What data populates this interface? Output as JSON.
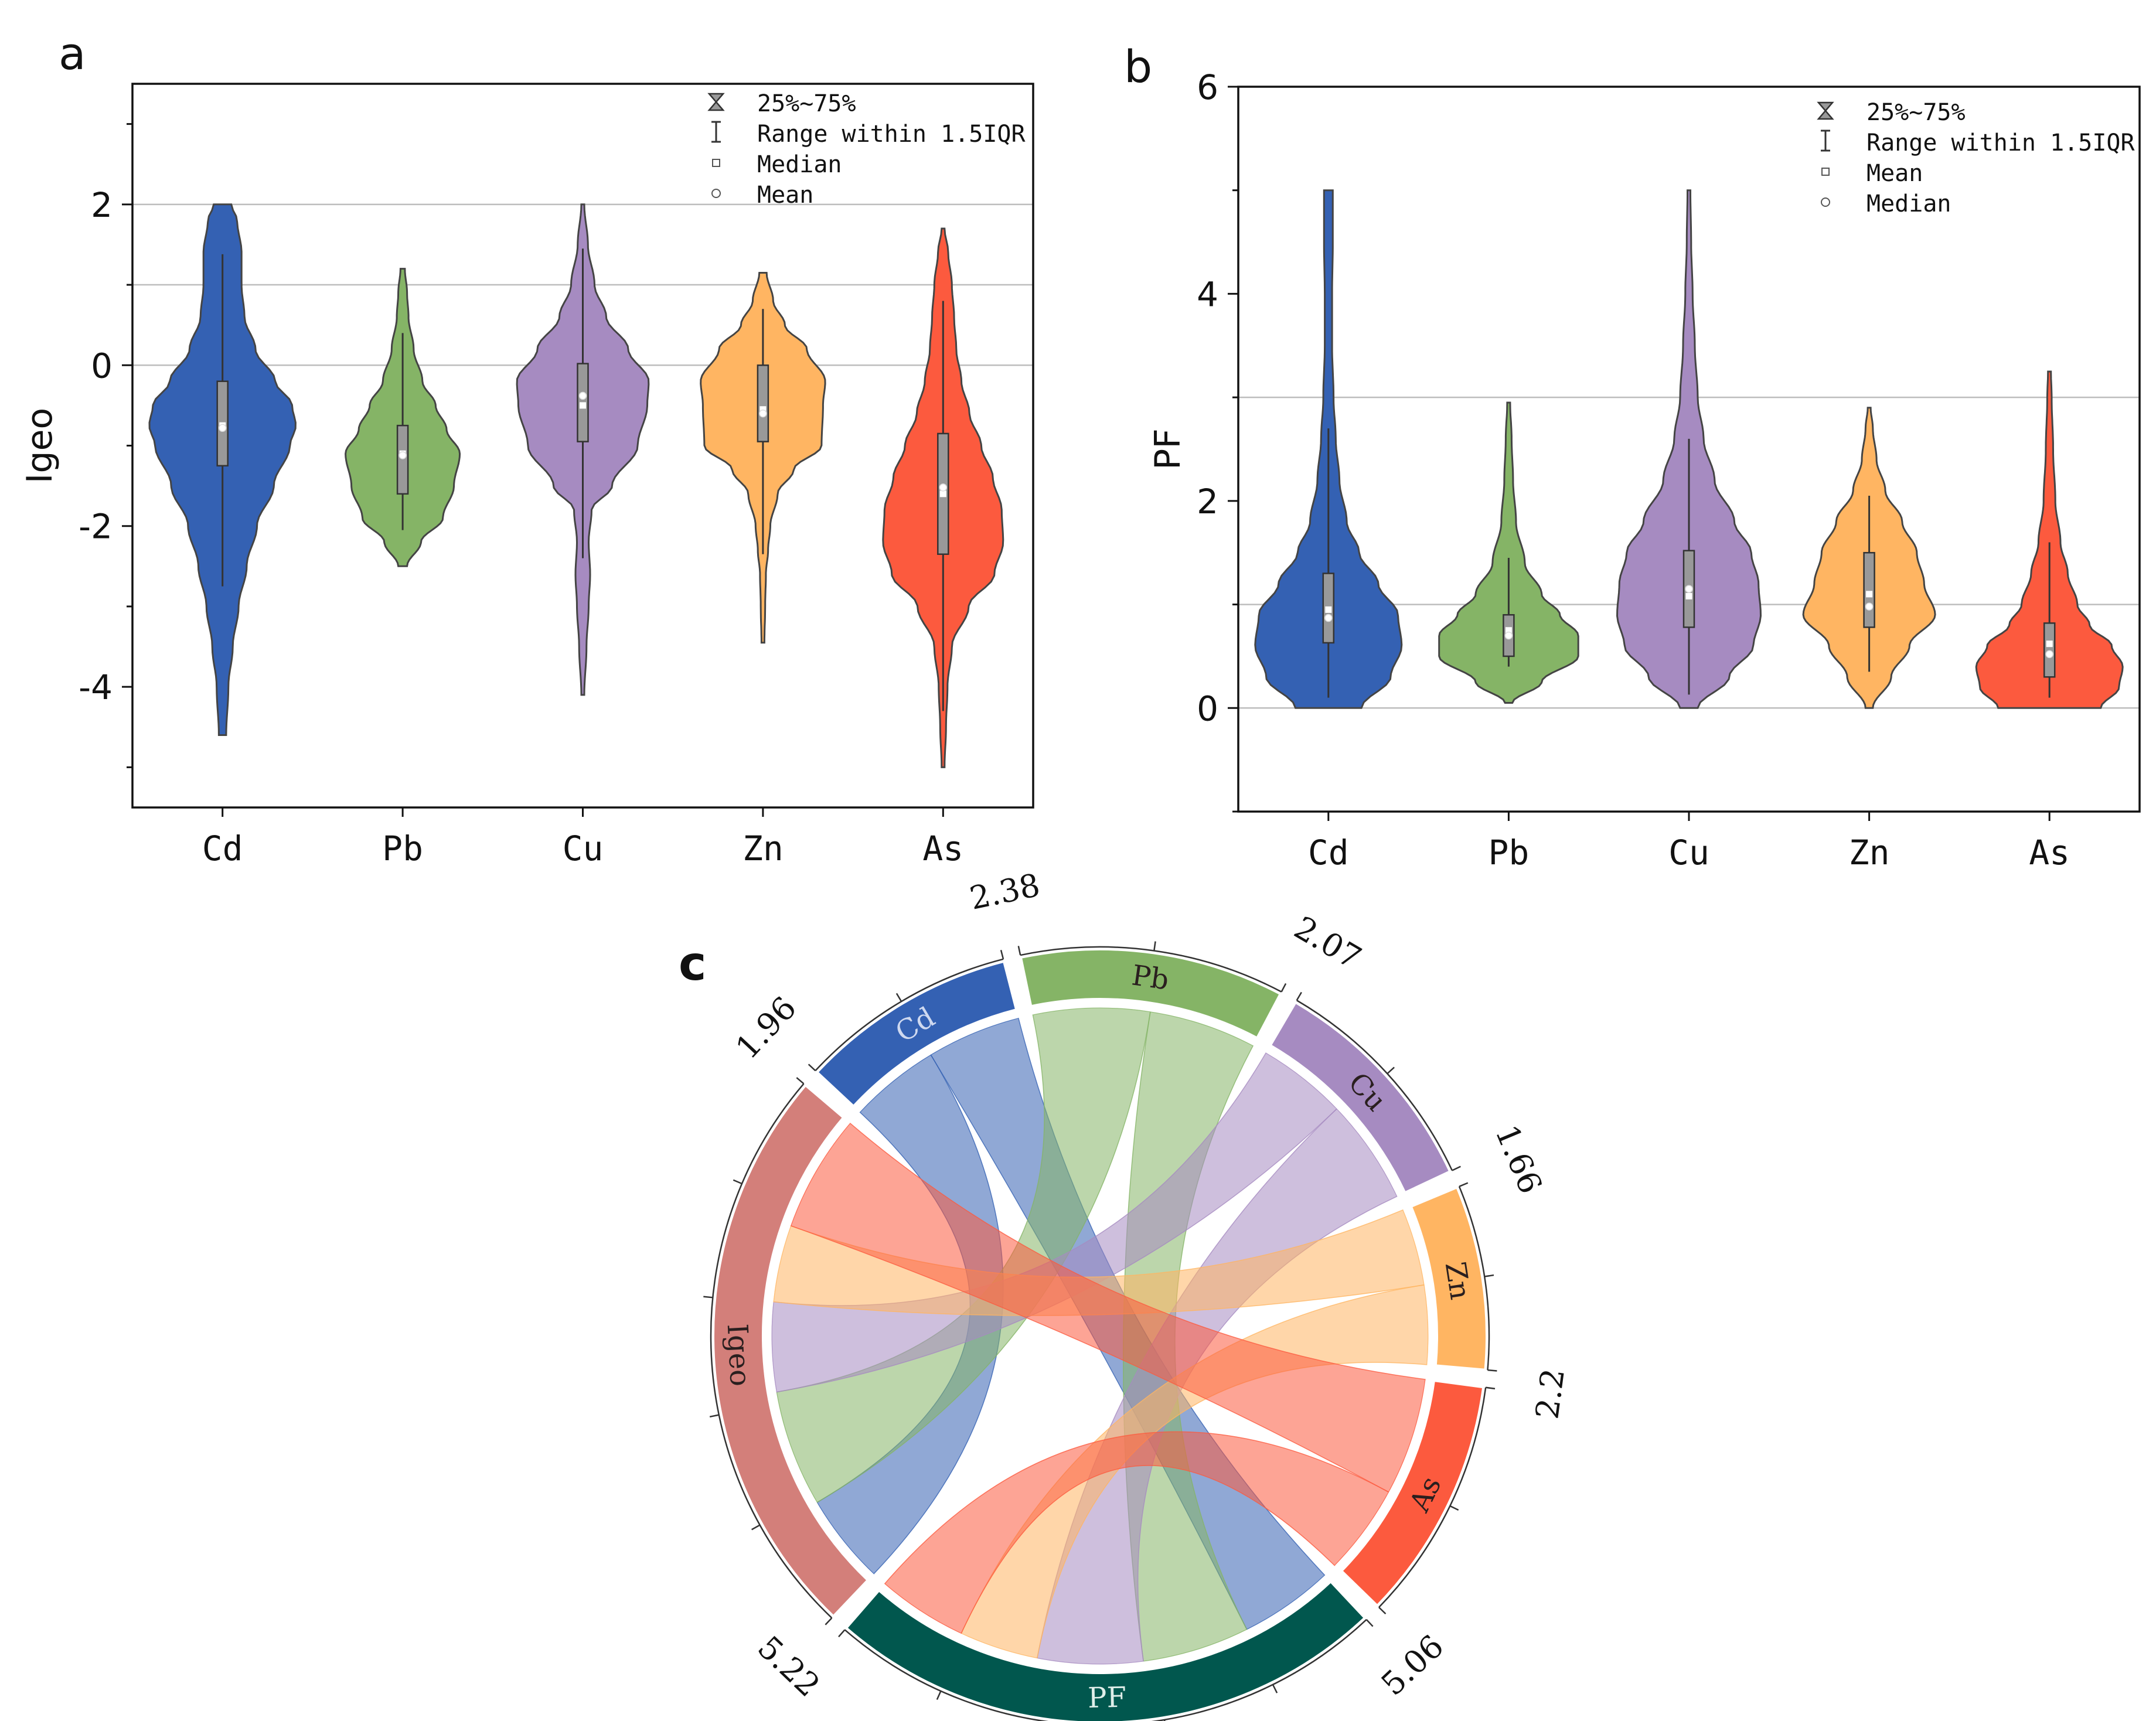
{
  "colors": {
    "Cd": "#3461b3",
    "Pb": "#85b466",
    "Cu": "#a68bc1",
    "Zn": "#ffb562",
    "As": "#fc5a3e",
    "Igeo": "#d37f7a",
    "PF": "#01574e",
    "ref_line": "#bdbdbd",
    "box": "#999999"
  },
  "chart_data": [
    {
      "id": "a",
      "type": "violin",
      "panel_label": "a",
      "ylabel": "Igeo",
      "xlabel": "",
      "categories": [
        "Cd",
        "Pb",
        "Cu",
        "Zn",
        "As"
      ],
      "ylim": [
        -5.5,
        3.5
      ],
      "yticks": [
        -4,
        -2,
        0,
        2
      ],
      "ref_lines": [
        2,
        1,
        0
      ],
      "legend": {
        "position": "top-right",
        "entries": [
          "25%~75%",
          "Range within 1.5IQR",
          "Median",
          "Mean"
        ]
      },
      "series": [
        {
          "name": "Cd",
          "min": -4.6,
          "max": 2.0,
          "whisker_low": -2.75,
          "whisker_high": 1.38,
          "q1": -1.25,
          "q3": -0.2,
          "median": -0.75,
          "mean": -0.78,
          "density": [
            [
              -4.6,
              0.05
            ],
            [
              -4.0,
              0.08
            ],
            [
              -3.5,
              0.14
            ],
            [
              -3.0,
              0.22
            ],
            [
              -2.5,
              0.33
            ],
            [
              -2.0,
              0.47
            ],
            [
              -1.5,
              0.7
            ],
            [
              -1.0,
              0.92
            ],
            [
              -0.75,
              1.0
            ],
            [
              -0.5,
              0.95
            ],
            [
              -0.2,
              0.72
            ],
            [
              0.2,
              0.45
            ],
            [
              0.6,
              0.3
            ],
            [
              1.0,
              0.26
            ],
            [
              1.4,
              0.26
            ],
            [
              1.8,
              0.2
            ],
            [
              2.0,
              0.12
            ]
          ]
        },
        {
          "name": "Pb",
          "min": -2.5,
          "max": 1.2,
          "whisker_low": -2.05,
          "whisker_high": 0.4,
          "q1": -1.6,
          "q3": -0.75,
          "median": -1.1,
          "mean": -1.12,
          "density": [
            [
              -2.5,
              0.06
            ],
            [
              -2.2,
              0.25
            ],
            [
              -1.9,
              0.55
            ],
            [
              -1.5,
              0.7
            ],
            [
              -1.1,
              0.78
            ],
            [
              -0.8,
              0.6
            ],
            [
              -0.5,
              0.45
            ],
            [
              -0.2,
              0.27
            ],
            [
              0.2,
              0.15
            ],
            [
              0.6,
              0.08
            ],
            [
              0.9,
              0.06
            ],
            [
              1.2,
              0.03
            ]
          ]
        },
        {
          "name": "Cu",
          "min": -4.1,
          "max": 2.0,
          "whisker_low": -2.4,
          "whisker_high": 1.45,
          "q1": -0.95,
          "q3": 0.02,
          "median": -0.5,
          "mean": -0.38,
          "density": [
            [
              -4.1,
              0.02
            ],
            [
              -3.5,
              0.05
            ],
            [
              -3.0,
              0.08
            ],
            [
              -2.6,
              0.1
            ],
            [
              -2.2,
              0.08
            ],
            [
              -1.8,
              0.12
            ],
            [
              -1.5,
              0.4
            ],
            [
              -1.0,
              0.75
            ],
            [
              -0.5,
              0.88
            ],
            [
              -0.2,
              0.9
            ],
            [
              0.2,
              0.62
            ],
            [
              0.6,
              0.32
            ],
            [
              1.0,
              0.16
            ],
            [
              1.5,
              0.07
            ],
            [
              2.0,
              0.02
            ]
          ]
        },
        {
          "name": "Zn",
          "min": -3.45,
          "max": 1.15,
          "whisker_low": -2.35,
          "whisker_high": 0.7,
          "q1": -0.95,
          "q3": 0.0,
          "median": -0.55,
          "mean": -0.6,
          "density": [
            [
              -3.45,
              0.02
            ],
            [
              -3.0,
              0.03
            ],
            [
              -2.6,
              0.04
            ],
            [
              -2.3,
              0.07
            ],
            [
              -2.0,
              0.1
            ],
            [
              -1.6,
              0.2
            ],
            [
              -1.3,
              0.42
            ],
            [
              -1.0,
              0.8
            ],
            [
              -0.5,
              0.82
            ],
            [
              -0.2,
              0.85
            ],
            [
              0.2,
              0.6
            ],
            [
              0.5,
              0.3
            ],
            [
              0.8,
              0.14
            ],
            [
              1.15,
              0.05
            ]
          ]
        },
        {
          "name": "As",
          "min": -5.0,
          "max": 1.7,
          "whisker_low": -4.3,
          "whisker_high": 0.8,
          "q1": -2.35,
          "q3": -0.85,
          "median": -1.6,
          "mean": -1.52,
          "density": [
            [
              -5.0,
              0.02
            ],
            [
              -4.5,
              0.04
            ],
            [
              -4.0,
              0.06
            ],
            [
              -3.5,
              0.12
            ],
            [
              -3.0,
              0.35
            ],
            [
              -2.6,
              0.7
            ],
            [
              -2.2,
              0.82
            ],
            [
              -1.8,
              0.8
            ],
            [
              -1.4,
              0.68
            ],
            [
              -1.0,
              0.52
            ],
            [
              -0.6,
              0.36
            ],
            [
              -0.2,
              0.25
            ],
            [
              0.2,
              0.18
            ],
            [
              0.6,
              0.15
            ],
            [
              1.0,
              0.12
            ],
            [
              1.4,
              0.07
            ],
            [
              1.7,
              0.02
            ]
          ]
        }
      ]
    },
    {
      "id": "b",
      "type": "violin",
      "panel_label": "b",
      "ylabel": "PF",
      "xlabel": "",
      "categories": [
        "Cd",
        "Pb",
        "Cu",
        "Zn",
        "As"
      ],
      "ylim": [
        -1,
        6
      ],
      "yticks": [
        0,
        2,
        4,
        6
      ],
      "ref_lines": [
        3,
        1,
        0
      ],
      "legend": {
        "position": "top-right",
        "entries": [
          "25%~75%",
          "Range within 1.5IQR",
          "Mean",
          "Median"
        ]
      },
      "series": [
        {
          "name": "Cd",
          "min": 0.0,
          "max": 5.0,
          "whisker_low": 0.1,
          "whisker_high": 2.7,
          "q1": 0.63,
          "q3": 1.3,
          "median": 0.95,
          "mean": 0.87,
          "density": [
            [
              0.0,
              0.45
            ],
            [
              0.3,
              0.85
            ],
            [
              0.6,
              1.0
            ],
            [
              0.9,
              0.95
            ],
            [
              1.2,
              0.68
            ],
            [
              1.5,
              0.42
            ],
            [
              1.8,
              0.25
            ],
            [
              2.2,
              0.15
            ],
            [
              2.6,
              0.1
            ],
            [
              3.0,
              0.07
            ],
            [
              3.5,
              0.05
            ],
            [
              4.0,
              0.05
            ],
            [
              4.5,
              0.06
            ],
            [
              5.0,
              0.06
            ]
          ]
        },
        {
          "name": "Pb",
          "min": 0.05,
          "max": 2.95,
          "whisker_low": 0.4,
          "whisker_high": 1.45,
          "q1": 0.5,
          "q3": 0.9,
          "median": 0.75,
          "mean": 0.7,
          "density": [
            [
              0.05,
              0.05
            ],
            [
              0.25,
              0.45
            ],
            [
              0.5,
              0.95
            ],
            [
              0.7,
              0.95
            ],
            [
              0.9,
              0.7
            ],
            [
              1.1,
              0.45
            ],
            [
              1.4,
              0.22
            ],
            [
              1.8,
              0.1
            ],
            [
              2.2,
              0.06
            ],
            [
              2.6,
              0.04
            ],
            [
              2.95,
              0.02
            ]
          ]
        },
        {
          "name": "Cu",
          "min": 0.0,
          "max": 5.0,
          "whisker_low": 0.13,
          "whisker_high": 2.6,
          "q1": 0.78,
          "q3": 1.52,
          "median": 1.08,
          "mean": 1.15,
          "density": [
            [
              0.0,
              0.12
            ],
            [
              0.3,
              0.55
            ],
            [
              0.6,
              0.88
            ],
            [
              0.9,
              0.98
            ],
            [
              1.2,
              0.95
            ],
            [
              1.5,
              0.85
            ],
            [
              1.8,
              0.62
            ],
            [
              2.2,
              0.35
            ],
            [
              2.6,
              0.2
            ],
            [
              3.0,
              0.12
            ],
            [
              3.5,
              0.08
            ],
            [
              4.0,
              0.05
            ],
            [
              4.5,
              0.03
            ],
            [
              5.0,
              0.02
            ]
          ]
        },
        {
          "name": "Zn",
          "min": 0.0,
          "max": 2.9,
          "whisker_low": 0.35,
          "whisker_high": 2.05,
          "q1": 0.78,
          "q3": 1.5,
          "median": 1.1,
          "mean": 0.98,
          "density": [
            [
              0.0,
              0.05
            ],
            [
              0.3,
              0.3
            ],
            [
              0.6,
              0.55
            ],
            [
              0.9,
              0.9
            ],
            [
              1.2,
              0.75
            ],
            [
              1.5,
              0.65
            ],
            [
              1.8,
              0.45
            ],
            [
              2.1,
              0.22
            ],
            [
              2.4,
              0.1
            ],
            [
              2.7,
              0.05
            ],
            [
              2.9,
              0.02
            ]
          ]
        },
        {
          "name": "As",
          "min": 0.0,
          "max": 3.25,
          "whisker_low": 0.1,
          "whisker_high": 1.6,
          "q1": 0.3,
          "q3": 0.82,
          "median": 0.62,
          "mean": 0.52,
          "density": [
            [
              0.0,
              0.7
            ],
            [
              0.2,
              0.95
            ],
            [
              0.4,
              1.0
            ],
            [
              0.6,
              0.85
            ],
            [
              0.8,
              0.55
            ],
            [
              1.0,
              0.38
            ],
            [
              1.3,
              0.25
            ],
            [
              1.6,
              0.15
            ],
            [
              2.0,
              0.08
            ],
            [
              2.5,
              0.05
            ],
            [
              3.0,
              0.03
            ],
            [
              3.25,
              0.02
            ]
          ]
        }
      ]
    },
    {
      "id": "c",
      "type": "chord",
      "panel_label": "c",
      "sectors": [
        {
          "name": "Cd",
          "total": 1.96
        },
        {
          "name": "Pb",
          "total": 2.38
        },
        {
          "name": "Cu",
          "total": 2.07
        },
        {
          "name": "Zn",
          "total": 1.66
        },
        {
          "name": "As",
          "total": 2.2
        },
        {
          "name": "PF",
          "total": 5.06
        },
        {
          "name": "Igeo",
          "total": 5.22
        }
      ],
      "sector_start_labels": [
        "1.96",
        "2.38",
        "2.07",
        "1.66",
        "2.2",
        "5.06",
        "5.22"
      ],
      "links": [
        {
          "source": "Cd",
          "target": "Igeo",
          "value": 0.96
        },
        {
          "source": "Cd",
          "target": "PF",
          "value": 1.0
        },
        {
          "source": "Pb",
          "target": "Igeo",
          "value": 1.24
        },
        {
          "source": "Pb",
          "target": "PF",
          "value": 1.14
        },
        {
          "source": "Cu",
          "target": "Igeo",
          "value": 0.95
        },
        {
          "source": "Cu",
          "target": "PF",
          "value": 1.12
        },
        {
          "source": "Zn",
          "target": "Igeo",
          "value": 0.82
        },
        {
          "source": "Zn",
          "target": "PF",
          "value": 0.84
        },
        {
          "source": "As",
          "target": "Igeo",
          "value": 1.25
        },
        {
          "source": "As",
          "target": "PF",
          "value": 0.96
        }
      ]
    }
  ]
}
